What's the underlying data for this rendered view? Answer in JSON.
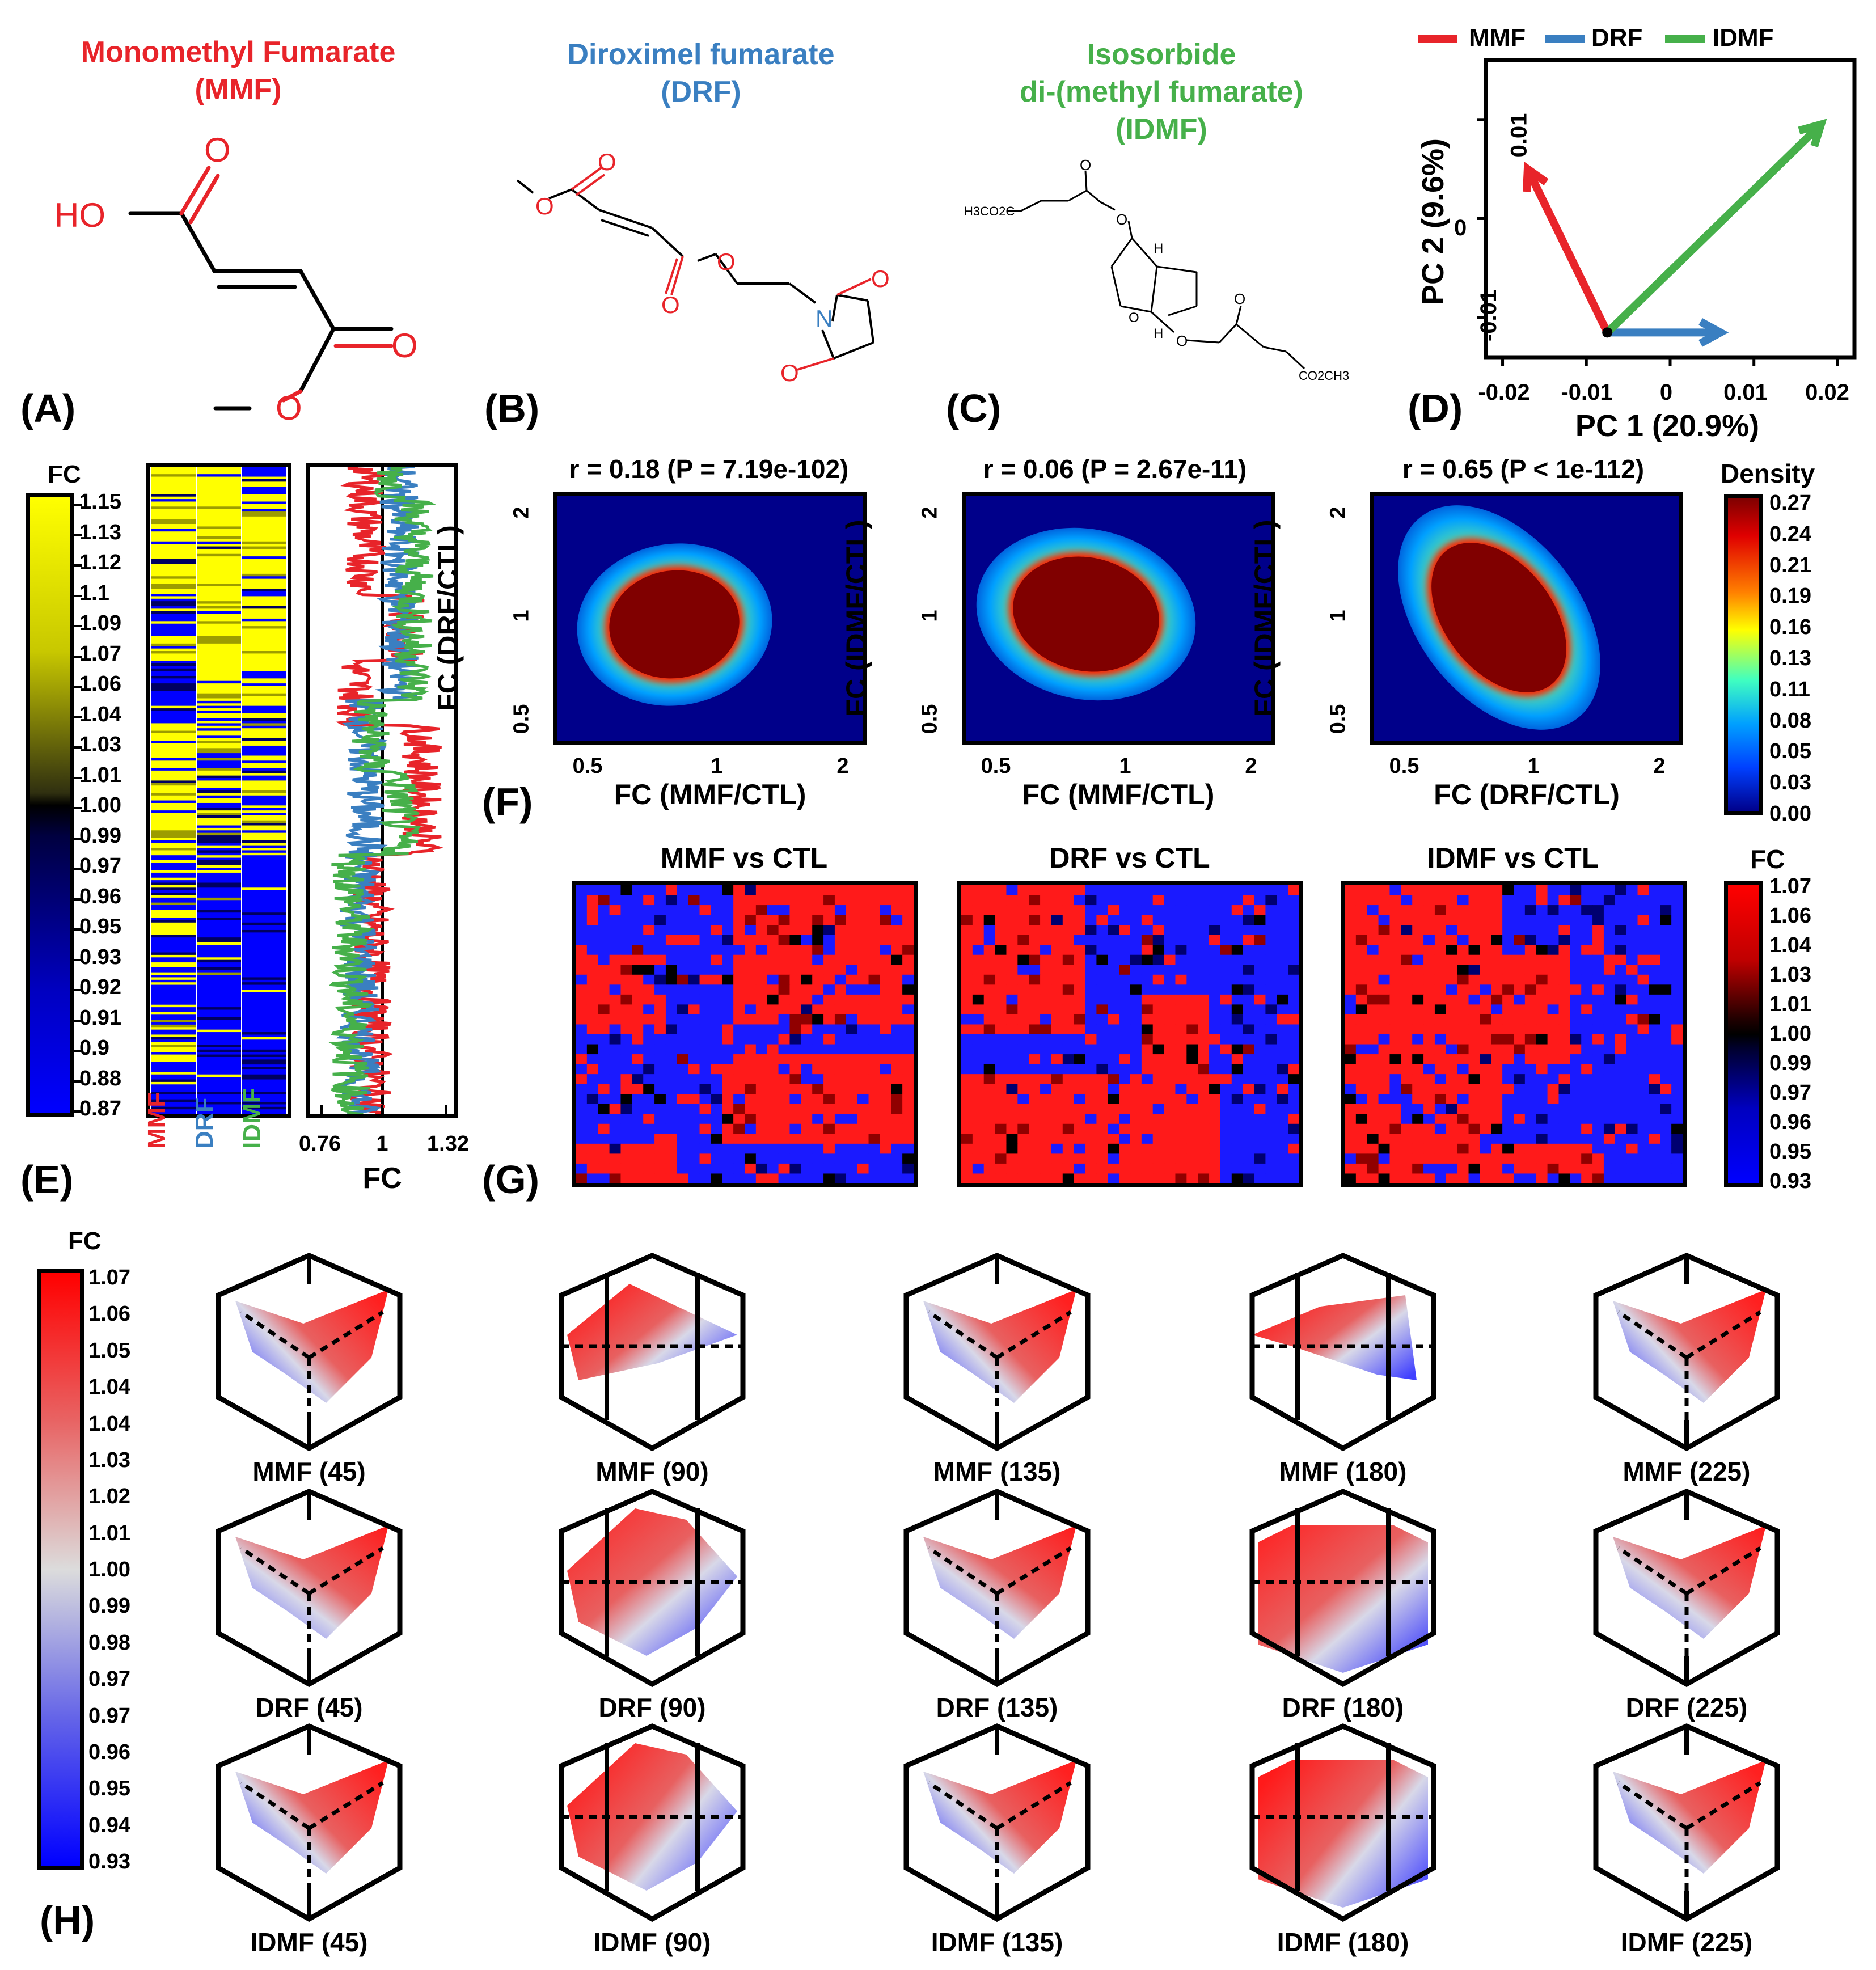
{
  "colors": {
    "mmf": "#e8242a",
    "drf": "#3a7fc1",
    "idmf": "#46b04a",
    "red": "#ff1a1a",
    "blue": "#1a1aff",
    "yellow": "#ffff00",
    "dark_red": "#800000"
  },
  "panel_labels": {
    "a": "(A)",
    "b": "(B)",
    "c": "(C)",
    "d": "(D)",
    "e": "(E)",
    "f": "(F)",
    "g": "(G)",
    "h": "(H)"
  },
  "compounds": [
    {
      "name": "Monomethyl Fumarate",
      "abbr": "(MMF)"
    },
    {
      "name": "Diroximel fumarate",
      "abbr": "(DRF)"
    },
    {
      "name": "Isosorbide",
      "name2": "di-(methyl fumarate)",
      "abbr": "(IDMF)"
    }
  ],
  "structure_atoms": {
    "o": "O",
    "ho": "HO",
    "n": "N",
    "h": "H",
    "ester1": "H3CO2C",
    "ester2": "CO2CH3"
  },
  "legend": [
    "MMF",
    "DRF",
    "IDMF"
  ],
  "pca": {
    "xlabel": "PC 1 (20.9%)",
    "ylabel": "PC 2 (9.6%)",
    "xticks": [
      "-0.02",
      "-0.01",
      "0",
      "0.01",
      "0.02"
    ],
    "yticks": [
      "0.01",
      "0",
      "-0.01"
    ]
  },
  "chart_data": [
    {
      "type": "line",
      "id": "pca_biplot",
      "title": "",
      "xlabel": "PC 1 (20.9%)",
      "ylabel": "PC 2 (9.6%)",
      "xlim": [
        -0.022,
        0.022
      ],
      "ylim": [
        -0.014,
        0.016
      ],
      "origin": [
        -0.0075,
        -0.0115
      ],
      "series": [
        {
          "name": "MMF",
          "end": [
            -0.017,
            0.005
          ]
        },
        {
          "name": "DRF",
          "end": [
            0.006,
            -0.0115
          ]
        },
        {
          "name": "IDMF",
          "end": [
            0.018,
            0.0095
          ]
        }
      ]
    },
    {
      "type": "heatmap",
      "id": "density_scatter",
      "panels": [
        {
          "title": "r = 0.18 (P = 7.19e-102)",
          "xlabel": "FC (MMF/CTL)",
          "ylabel": "FC (DRF/CTL)",
          "r": 0.18
        },
        {
          "title": "r = 0.06 (P = 2.67e-11)",
          "xlabel": "FC (MMF/CTL)",
          "ylabel": "FC (IDMF/CTL)",
          "r": 0.06
        },
        {
          "title": "r = 0.65 (P < 1e-112)",
          "xlabel": "FC (DRF/CTL)",
          "ylabel": "FC (IDMF/CTL)",
          "r": 0.65
        }
      ],
      "xticks": [
        "0.5",
        "1",
        "2"
      ],
      "yticks": [
        "2",
        "1",
        "0.5"
      ],
      "legend_title": "Density",
      "legend_ticks": [
        "0.27",
        "0.24",
        "0.21",
        "0.19",
        "0.16",
        "0.13",
        "0.11",
        "0.08",
        "0.05",
        "0.03",
        "0.00"
      ]
    },
    {
      "type": "heatmap",
      "id": "fc_columns",
      "columns": [
        "MMF",
        "DRF",
        "IDMF"
      ],
      "legend_title": "FC",
      "legend_ticks": [
        "1.15",
        "1.13",
        "1.12",
        "1.1",
        "1.09",
        "1.07",
        "1.06",
        "1.04",
        "1.03",
        "1.01",
        "1.00",
        "0.99",
        "0.97",
        "0.96",
        "0.95",
        "0.93",
        "0.92",
        "0.91",
        "0.9",
        "0.88",
        "0.87"
      ]
    },
    {
      "type": "line",
      "id": "fc_profile",
      "xlabel": "FC",
      "xticks": [
        "0.76",
        "1",
        "1.32"
      ],
      "series": [
        {
          "name": "MMF"
        },
        {
          "name": "DRF"
        },
        {
          "name": "IDMF"
        }
      ]
    },
    {
      "type": "heatmap",
      "id": "som_maps",
      "panels": [
        {
          "title": "MMF vs CTL"
        },
        {
          "title": "DRF vs CTL"
        },
        {
          "title": "IDMF vs CTL"
        }
      ],
      "legend_title": "FC",
      "legend_ticks": [
        "1.07",
        "1.06",
        "1.04",
        "1.03",
        "1.01",
        "1.00",
        "0.99",
        "0.97",
        "0.96",
        "0.95",
        "0.93"
      ]
    },
    {
      "type": "heatmap",
      "id": "surfaces_3d",
      "rows": [
        {
          "name": "MMF",
          "labels": [
            "MMF (45)",
            "MMF (90)",
            "MMF (135)",
            "MMF (180)",
            "MMF (225)"
          ]
        },
        {
          "name": "DRF",
          "labels": [
            "DRF (45)",
            "DRF (90)",
            "DRF (135)",
            "DRF (180)",
            "DRF (225)"
          ]
        },
        {
          "name": "IDMF",
          "labels": [
            "IDMF (45)",
            "IDMF (90)",
            "IDMF (135)",
            "IDMF (180)",
            "IDMF (225)"
          ]
        }
      ],
      "legend_title": "FC",
      "legend_ticks": [
        "1.07",
        "1.06",
        "1.05",
        "1.04",
        "1.04",
        "1.03",
        "1.02",
        "1.01",
        "1.00",
        "0.99",
        "0.98",
        "0.97",
        "0.97",
        "0.96",
        "0.95",
        "0.94",
        "0.93"
      ]
    }
  ]
}
